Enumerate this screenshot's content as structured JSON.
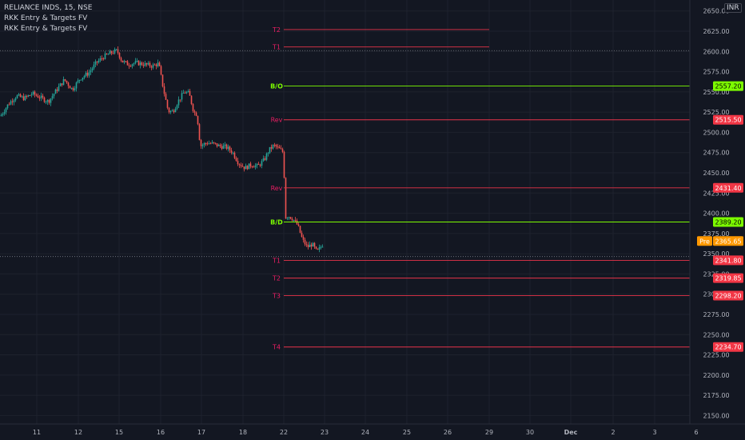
{
  "header": {
    "symbol_line": "RELIANCE INDS, 15, NSE",
    "indicator_1": "RKK Entry & Targets FV",
    "indicator_2": "RKK Entry & Targets FV",
    "currency": "INR"
  },
  "colors": {
    "background": "#131722",
    "grid": "#1e222d",
    "axis_text": "#b2b5be",
    "up_candle": "#26a69a",
    "down_candle": "#ef5350",
    "breakout_line": "#7cfc00",
    "level_line": "#e8334a",
    "level_label": "#e91e63",
    "price_badge_red": "#f23645",
    "price_badge_green": "#7cfc00",
    "premarket_badge": "#ff9800"
  },
  "chart_data": {
    "type": "candlestick",
    "title": "RELIANCE INDS, 15, NSE",
    "y_axis": {
      "ticks": [
        2150,
        2175,
        2200,
        2225,
        2250,
        2275,
        2300,
        2325,
        2350,
        2375,
        2400,
        2425,
        2450,
        2475,
        2500,
        2525,
        2550,
        2575,
        2600,
        2625,
        2650
      ],
      "tick_labels": [
        "2150.00",
        "2175.00",
        "2200.00",
        "2225.00",
        "2250.00",
        "2275.00",
        "2300.00",
        "2325.00",
        "2350.00",
        "2375.00",
        "2400.00",
        "2425.00",
        "2450.00",
        "2475.00",
        "2500.00",
        "2525.00",
        "2550.00",
        "2575.00",
        "2600.00",
        "2625.00",
        "2650.00"
      ],
      "range": [
        2140,
        2665
      ],
      "side": "right",
      "unit": "INR"
    },
    "x_axis": {
      "tick_labels": [
        "11",
        "12",
        "15",
        "16",
        "17",
        "18",
        "22",
        "23",
        "24",
        "25",
        "26",
        "29",
        "30",
        "Dec",
        "2",
        "3",
        "6"
      ],
      "month_boundary_label": "Dec"
    },
    "levels": [
      {
        "label": "T2",
        "value": 2627,
        "kind": "target-upper",
        "badge": ""
      },
      {
        "label": "T1",
        "value": 2605.5,
        "kind": "target-upper",
        "badge": ""
      },
      {
        "label": "B/O",
        "value": 2557.2,
        "kind": "breakout",
        "badge": "2557.20"
      },
      {
        "label": "Rev",
        "value": 2515.5,
        "kind": "reversal",
        "badge": "2515.50"
      },
      {
        "label": "Rev",
        "value": 2431.4,
        "kind": "reversal",
        "badge": "2431.40"
      },
      {
        "label": "B/D",
        "value": 2389.2,
        "kind": "breakdown",
        "badge": "2389.20"
      },
      {
        "label": "T1",
        "value": 2341.8,
        "kind": "target-lower",
        "badge": "2341.80"
      },
      {
        "label": "T2",
        "value": 2319.85,
        "kind": "target-lower",
        "badge": "2319.85"
      },
      {
        "label": "T3",
        "value": 2298.2,
        "kind": "target-lower",
        "badge": "2298.20"
      },
      {
        "label": "T4",
        "value": 2234.7,
        "kind": "target-lower",
        "badge": "2234.70"
      }
    ],
    "reference_lines": [
      {
        "value": 2601,
        "style": "dotted"
      },
      {
        "value": 2346.5,
        "style": "dotted"
      }
    ],
    "premarket": {
      "label": "Pre",
      "value": 2365.65,
      "badge": "2365.65"
    },
    "price_path": [
      {
        "x": 0,
        "close": 2520
      },
      {
        "x": 10,
        "close": 2535
      },
      {
        "x": 20,
        "close": 2545
      },
      {
        "x": 30,
        "close": 2542
      },
      {
        "x": 40,
        "close": 2548
      },
      {
        "x": 50,
        "close": 2543
      },
      {
        "x": 60,
        "close": 2538
      },
      {
        "x": 70,
        "close": 2552
      },
      {
        "x": 80,
        "close": 2565
      },
      {
        "x": 90,
        "close": 2553
      },
      {
        "x": 100,
        "close": 2567
      },
      {
        "x": 110,
        "close": 2573
      },
      {
        "x": 120,
        "close": 2586
      },
      {
        "x": 130,
        "close": 2594
      },
      {
        "x": 140,
        "close": 2599
      },
      {
        "x": 146,
        "close": 2601
      },
      {
        "x": 152,
        "close": 2588
      },
      {
        "x": 160,
        "close": 2584
      },
      {
        "x": 170,
        "close": 2586
      },
      {
        "x": 180,
        "close": 2584
      },
      {
        "x": 190,
        "close": 2582
      },
      {
        "x": 198,
        "close": 2585
      },
      {
        "x": 204,
        "close": 2553
      },
      {
        "x": 210,
        "close": 2526
      },
      {
        "x": 216,
        "close": 2526
      },
      {
        "x": 222,
        "close": 2538
      },
      {
        "x": 230,
        "close": 2550
      },
      {
        "x": 236,
        "close": 2548
      },
      {
        "x": 242,
        "close": 2525
      },
      {
        "x": 246,
        "close": 2522
      },
      {
        "x": 250,
        "close": 2483
      },
      {
        "x": 258,
        "close": 2487
      },
      {
        "x": 266,
        "close": 2486
      },
      {
        "x": 274,
        "close": 2483
      },
      {
        "x": 282,
        "close": 2482
      },
      {
        "x": 290,
        "close": 2476
      },
      {
        "x": 298,
        "close": 2462
      },
      {
        "x": 306,
        "close": 2456
      },
      {
        "x": 314,
        "close": 2460
      },
      {
        "x": 322,
        "close": 2458
      },
      {
        "x": 330,
        "close": 2466
      },
      {
        "x": 336,
        "close": 2478
      },
      {
        "x": 342,
        "close": 2484
      },
      {
        "x": 348,
        "close": 2480
      },
      {
        "x": 353,
        "close": 2476
      },
      {
        "x": 355,
        "close": 2446
      },
      {
        "x": 357,
        "close": 2395
      },
      {
        "x": 360,
        "close": 2397
      },
      {
        "x": 366,
        "close": 2393
      },
      {
        "x": 372,
        "close": 2385
      },
      {
        "x": 378,
        "close": 2367
      },
      {
        "x": 384,
        "close": 2358
      },
      {
        "x": 390,
        "close": 2362
      },
      {
        "x": 396,
        "close": 2352
      },
      {
        "x": 402,
        "close": 2360
      },
      {
        "x": 404,
        "close": 2362
      }
    ]
  }
}
